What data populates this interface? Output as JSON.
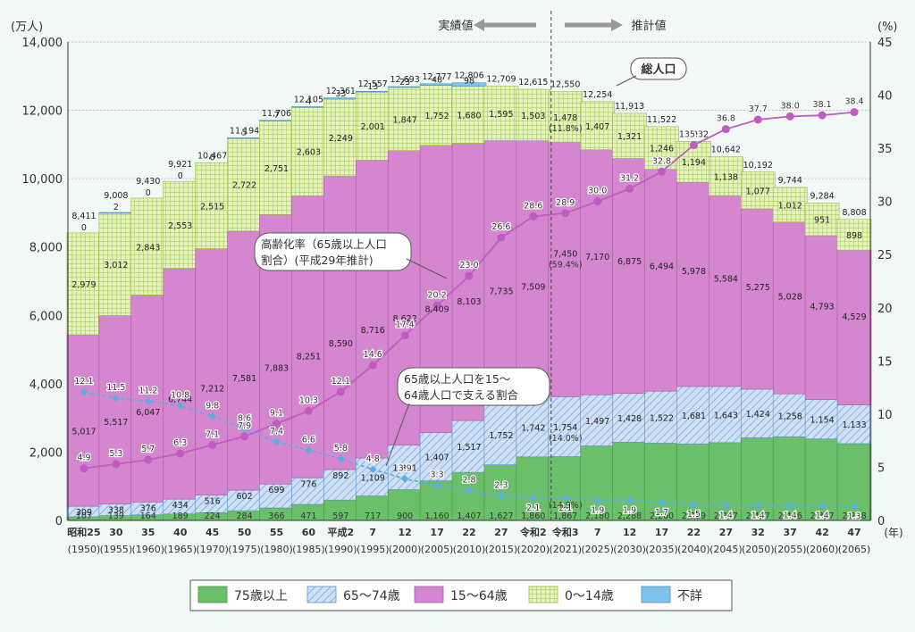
{
  "chart_data": {
    "type": "bar",
    "y_left_unit": "(万人)",
    "y_right_unit": "(%)",
    "x_unit": "(年)",
    "ylim_left": [
      0,
      14000
    ],
    "ylim_right": [
      0,
      45
    ],
    "yticks_left": [
      "0",
      "2,000",
      "4,000",
      "6,000",
      "8,000",
      "10,000",
      "12,000",
      "14,000"
    ],
    "yticks_right": [
      "0",
      "5",
      "10",
      "15",
      "20",
      "25",
      "30",
      "35",
      "40",
      "45"
    ],
    "categories": [
      {
        "era": "昭和25",
        "year": "(1950)"
      },
      {
        "era": "30",
        "year": "(1955)"
      },
      {
        "era": "35",
        "year": "(1960)"
      },
      {
        "era": "40",
        "year": "(1965)"
      },
      {
        "era": "45",
        "year": "(1970)"
      },
      {
        "era": "50",
        "year": "(1975)"
      },
      {
        "era": "55",
        "year": "(1980)"
      },
      {
        "era": "60",
        "year": "(1985)"
      },
      {
        "era": "平成2",
        "year": "(1990)"
      },
      {
        "era": "7",
        "year": "(1995)"
      },
      {
        "era": "12",
        "year": "(2000)"
      },
      {
        "era": "17",
        "year": "(2005)"
      },
      {
        "era": "22",
        "year": "(2010)"
      },
      {
        "era": "27",
        "year": "(2015)"
      },
      {
        "era": "令和2",
        "year": "(2020)"
      },
      {
        "era": "令和3",
        "year": "(2021)"
      },
      {
        "era": "7",
        "year": "(2025)"
      },
      {
        "era": "12",
        "year": "(2030)"
      },
      {
        "era": "17",
        "year": "(2035)"
      },
      {
        "era": "22",
        "year": "(2040)"
      },
      {
        "era": "27",
        "year": "(2045)"
      },
      {
        "era": "32",
        "year": "(2050)"
      },
      {
        "era": "37",
        "year": "(2055)"
      },
      {
        "era": "42",
        "year": "(2060)"
      },
      {
        "era": "47",
        "year": "(2065)"
      }
    ],
    "series": [
      {
        "name": "75歳以上",
        "color": "#6cbf6a",
        "values": [
          107,
          139,
          164,
          189,
          224,
          284,
          366,
          471,
          597,
          717,
          900,
          1160,
          1407,
          1627,
          1860,
          1867,
          2180,
          2288,
          2260,
          2239,
          2277,
          2417,
          2446,
          2387,
          2248
        ],
        "labels": [
          "107",
          "139",
          "164",
          "189",
          "224",
          "284",
          "366",
          "471",
          "597",
          "717",
          "900",
          "1,160",
          "1,407",
          "1,627",
          "1,860",
          "1,867",
          "2,180",
          "2,288",
          "2,260",
          "2,239",
          "2,277",
          "2,417",
          "2,446",
          "2,387",
          "2,248"
        ]
      },
      {
        "name": "65～74歳",
        "color": "#b9d3f0",
        "values": [
          309,
          338,
          376,
          434,
          516,
          602,
          699,
          776,
          892,
          1109,
          1301,
          1407,
          1517,
          1752,
          1742,
          1754,
          1497,
          1428,
          1522,
          1681,
          1643,
          1424,
          1258,
          1154,
          1133
        ],
        "labels": [
          "309",
          "338",
          "376",
          "434",
          "516",
          "602",
          "699",
          "776",
          "892",
          "1,109",
          "1,301",
          "1,407",
          "1,517",
          "1,752",
          "1,742",
          "1,754",
          "1,497",
          "1,428",
          "1,522",
          "1,681",
          "1,643",
          "1,424",
          "1,258",
          "1,154",
          "1,133"
        ]
      },
      {
        "name": "15～64歳",
        "color": "#d486cf",
        "values": [
          5017,
          5517,
          6047,
          6744,
          7212,
          7581,
          7883,
          8251,
          8590,
          8716,
          8622,
          8409,
          8103,
          7735,
          7509,
          7450,
          7170,
          6875,
          6494,
          5978,
          5584,
          5275,
          5028,
          4793,
          4529
        ],
        "labels": [
          "5,017",
          "5,517",
          "6,047",
          "6,744",
          "7,212",
          "7,581",
          "7,883",
          "8,251",
          "8,590",
          "8,716",
          "8,622",
          "8,409",
          "8,103",
          "7,735",
          "7,509",
          "7,450",
          "7,170",
          "6,875",
          "6,494",
          "5,978",
          "5,584",
          "5,275",
          "5,028",
          "4,793",
          "4,529"
        ]
      },
      {
        "name": "0～14歳",
        "color": "#d6ea9c",
        "values": [
          2979,
          3012,
          2843,
          2553,
          2515,
          2722,
          2751,
          2603,
          2249,
          2001,
          1847,
          1752,
          1680,
          1595,
          1503,
          1478,
          1407,
          1321,
          1246,
          1194,
          1138,
          1077,
          1012,
          951,
          898
        ],
        "labels": [
          "2,979",
          "3,012",
          "2,843",
          "2,553",
          "2,515",
          "2,722",
          "2,751",
          "2,603",
          "2,249",
          "2,001",
          "1,847",
          "1,752",
          "1,680",
          "1,595",
          "1,503",
          "1,478",
          "1,407",
          "1,321",
          "1,246",
          "1,194",
          "1,138",
          "1,077",
          "1,012",
          "951",
          "898"
        ]
      },
      {
        "name": "不詳",
        "color": "#7ec4ea",
        "values": [
          0,
          2,
          0,
          0,
          0,
          5,
          7,
          4,
          33,
          13,
          23,
          48,
          98,
          0,
          0,
          0,
          0,
          0,
          0,
          0,
          0,
          0,
          0,
          0,
          0
        ],
        "labels": [
          "0",
          "2",
          "0",
          "0",
          "0",
          "5",
          "7",
          "4",
          "33",
          "13",
          "23",
          "48",
          "98",
          "",
          "",
          "",
          "",
          "",
          "",
          "",
          "",
          "",
          "",
          "",
          ""
        ]
      }
    ],
    "totals": [
      8411,
      9008,
      9430,
      9921,
      10467,
      11194,
      11706,
      12105,
      12361,
      12557,
      12693,
      12777,
      12806,
      12709,
      12615,
      12550,
      12254,
      11913,
      11522,
      11092,
      10642,
      10192,
      9744,
      9284,
      8808
    ],
    "total_labels": [
      "8,411",
      "9,008",
      "9,430",
      "9,921",
      "10,467",
      "11,194",
      "11,706",
      "12,105",
      "12,361",
      "12,557",
      "12,693",
      "12,777",
      "12,806",
      "12,709",
      "12,615",
      "12,550",
      "12,254",
      "11,913",
      "11,522",
      "11,092",
      "10,642",
      "10,192",
      "9,744",
      "9,284",
      "8,808"
    ],
    "aging_rate": [
      4.9,
      5.3,
      5.7,
      6.3,
      7.1,
      7.9,
      9.1,
      10.3,
      12.1,
      14.6,
      17.4,
      20.2,
      23.0,
      26.6,
      28.6,
      28.9,
      30.0,
      31.2,
      32.8,
      35.3,
      36.8,
      37.7,
      38.0,
      38.1,
      38.4
    ],
    "aging_labels": [
      "4.9",
      "5.3",
      "5.7",
      "6.3",
      "7.1",
      "7.9",
      "9.1",
      "10.3",
      "12.1",
      "14.6",
      "17.4",
      "20.2",
      "23.0",
      "26.6",
      "28.6",
      "28.9",
      "30.0",
      "31.2",
      "32.8",
      "35.3",
      "36.8",
      "37.7",
      "38.0",
      "38.1",
      "38.4"
    ],
    "support_ratio": [
      12.1,
      11.5,
      11.2,
      10.8,
      9.8,
      8.6,
      7.4,
      6.6,
      5.8,
      4.8,
      3.9,
      3.3,
      2.8,
      2.3,
      2.1,
      2.1,
      1.9,
      1.9,
      1.7,
      1.5,
      1.4,
      1.4,
      1.4,
      1.4,
      1.3
    ],
    "support_labels": [
      "12.1",
      "11.5",
      "11.2",
      "10.8",
      "9.8",
      "8.6",
      "7.4",
      "6.6",
      "5.8",
      "4.8",
      "3.9",
      "3.3",
      "2.8",
      "2.3",
      "2.1",
      "2.1",
      "1.9",
      "1.9",
      "1.7",
      "1.5",
      "1.4",
      "1.4",
      "1.4",
      "1.4",
      "1.3"
    ],
    "pct_2021": {
      "prod": "(59.4%)",
      "old": "(14.0%)",
      "oldest": "(14.9%)",
      "young": "(11.8%)"
    },
    "legend_placement": "bottom",
    "colors": {
      "aging_line": "#c05cc0",
      "support_line": "#5aaee0",
      "axis": "#333333"
    }
  },
  "annotations": {
    "actual": "実績値",
    "projected": "推計値",
    "total_pop": "総人口",
    "aging_label_1": "高齢化率（65歳以上人口",
    "aging_label_2": "割合）(平成29年推計)",
    "support_label_1": "65歳以上人口を15～",
    "support_label_2": "64歳人口で支える割合"
  },
  "legend": [
    {
      "label": "75歳以上",
      "key": "75plus"
    },
    {
      "label": "65～74歳",
      "key": "65to74"
    },
    {
      "label": "15～64歳",
      "key": "15to64"
    },
    {
      "label": "0～14歳",
      "key": "0to14"
    },
    {
      "label": "不詳",
      "key": "unknown"
    }
  ]
}
